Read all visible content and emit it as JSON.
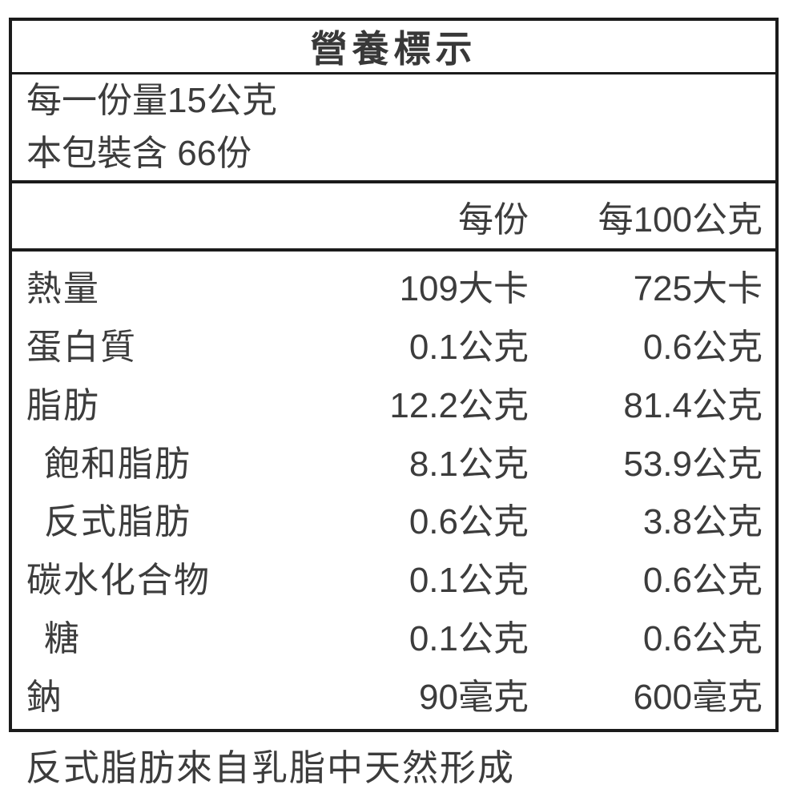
{
  "label": {
    "title": "營養標示",
    "serving_info": {
      "serving_size": "每一份量15公克",
      "servings_per_package": "本包裝含 66份"
    },
    "columns": {
      "per_serving": "每份",
      "per_100g": "每100公克"
    },
    "rows": [
      {
        "name": "熱量",
        "indent": false,
        "per_serving": "109大卡",
        "per_100g": "725大卡"
      },
      {
        "name": "蛋白質",
        "indent": false,
        "per_serving": "0.1公克",
        "per_100g": "0.6公克"
      },
      {
        "name": "脂肪",
        "indent": false,
        "per_serving": "12.2公克",
        "per_100g": "81.4公克"
      },
      {
        "name": "飽和脂肪",
        "indent": true,
        "per_serving": "8.1公克",
        "per_100g": "53.9公克"
      },
      {
        "name": "反式脂肪",
        "indent": true,
        "per_serving": "0.6公克",
        "per_100g": "3.8公克"
      },
      {
        "name": "碳水化合物",
        "indent": false,
        "per_serving": "0.1公克",
        "per_100g": "0.6公克"
      },
      {
        "name": "糖",
        "indent": true,
        "per_serving": "0.1公克",
        "per_100g": "0.6公克"
      },
      {
        "name": "鈉",
        "indent": false,
        "per_serving": "90毫克",
        "per_100g": "600毫克"
      }
    ],
    "footnote": "反式脂肪來自乳脂中天然形成",
    "colors": {
      "text": "#3c3c3c",
      "border": "#1b1b1b",
      "background": "#ffffff"
    }
  }
}
